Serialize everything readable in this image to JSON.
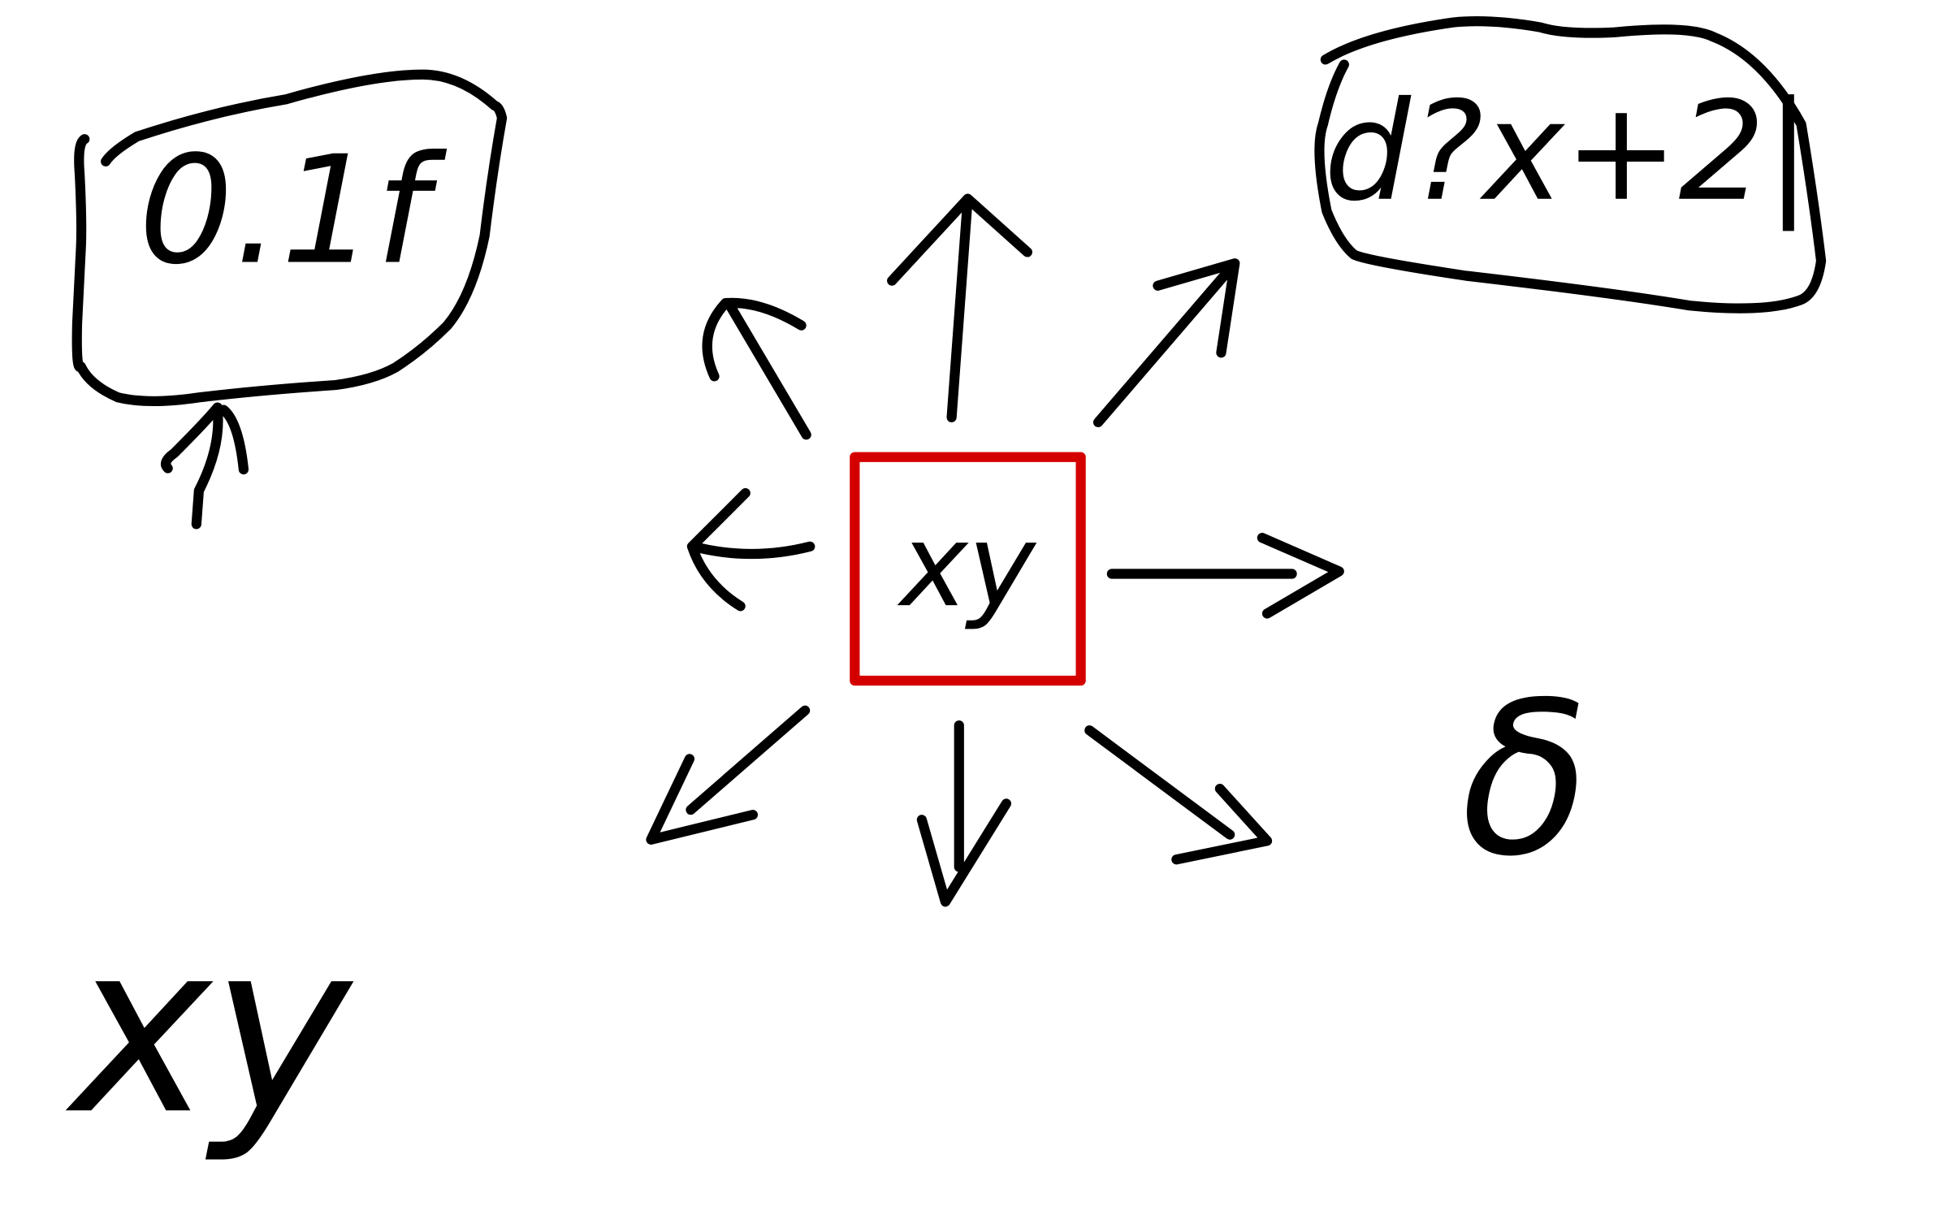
{
  "nodes": [
    {
      "label": "xy"
    },
    {
      "label": "0.1f"
    },
    {
      "label": "d?x+2|"
    },
    {
      "label": "xy"
    },
    {
      "label": "δ"
    }
  ]
}
